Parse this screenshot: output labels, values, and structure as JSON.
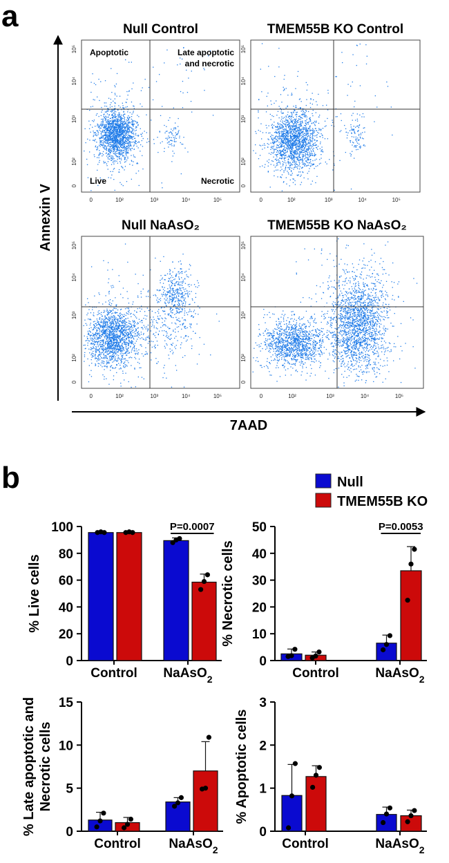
{
  "panel_a": {
    "label": "a",
    "y_axis_label": "Annexin V",
    "x_axis_label": "7AAD",
    "tick_labels": [
      "0",
      "10²",
      "10³",
      "10⁴",
      "10⁵"
    ],
    "quadrant_labels": {
      "top_left": "Apoptotic",
      "top_right_1": "Late apoptotic",
      "top_right_2": "and necrotic",
      "bottom_left": "Live",
      "bottom_right": "Necrotic"
    },
    "plots": [
      {
        "title": "Null Control",
        "point_color": "#1e7be8"
      },
      {
        "title": "TMEM55B KO Control",
        "point_color": "#1e7be8"
      },
      {
        "title": "Null NaAsO₂",
        "point_color": "#1e7be8"
      },
      {
        "title": "TMEM55B KO NaAsO₂",
        "point_color": "#1e7be8"
      }
    ]
  },
  "panel_b": {
    "label": "b",
    "legend": [
      {
        "name": "Null",
        "color": "#0a0ad0"
      },
      {
        "name": "TMEM55B KO",
        "color": "#cc0a0a"
      }
    ]
  },
  "chart_data": [
    {
      "type": "bar",
      "ylabel": "% Live cells",
      "categories": [
        "Control",
        "NaAsO₂"
      ],
      "ylim": [
        0,
        100
      ],
      "yticks": [
        0,
        20,
        40,
        60,
        80,
        100
      ],
      "series": [
        {
          "name": "Null",
          "values": [
            95.5,
            89.5
          ],
          "errors": [
            1.0,
            2.0
          ],
          "points": [
            [
              95.5,
              96,
              95.5
            ],
            [
              88,
              90,
              91
            ]
          ]
        },
        {
          "name": "TMEM55B KO",
          "values": [
            95.5,
            58.5
          ],
          "errors": [
            1.0,
            6.0
          ],
          "points": [
            [
              95.5,
              96,
              95.5
            ],
            [
              53,
              59,
              64
            ]
          ]
        }
      ],
      "annotation": {
        "text": "P=0.0007",
        "category_index": 1
      }
    },
    {
      "type": "bar",
      "ylabel": "% Necrotic cells",
      "categories": [
        "Control",
        "NaAsO₂"
      ],
      "ylim": [
        0,
        50
      ],
      "yticks": [
        0,
        10,
        20,
        30,
        40,
        50
      ],
      "series": [
        {
          "name": "Null",
          "values": [
            2.5,
            6.5
          ],
          "errors": [
            1.8,
            3.0
          ],
          "points": [
            [
              1.5,
              1.8,
              4.2
            ],
            [
              4.0,
              6.0,
              9.3
            ]
          ]
        },
        {
          "name": "TMEM55B KO",
          "values": [
            2.0,
            33.5
          ],
          "errors": [
            1.2,
            9.0
          ],
          "points": [
            [
              1.0,
              1.7,
              3.2
            ],
            [
              22.5,
              36.0,
              41.5
            ]
          ]
        }
      ],
      "annotation": {
        "text": "P=0.0053",
        "category_index": 1
      }
    },
    {
      "type": "bar",
      "ylabel": "% Late apoptotic and Necrotic cells",
      "ylabel_lines": [
        "% Late apoptotic and",
        "Necrotic cells"
      ],
      "categories": [
        "Control",
        "NaAsO₂"
      ],
      "ylim": [
        0,
        15
      ],
      "yticks": [
        0,
        5,
        10,
        15
      ],
      "series": [
        {
          "name": "Null",
          "values": [
            1.3,
            3.4
          ],
          "errors": [
            0.9,
            0.5
          ],
          "points": [
            [
              0.5,
              1.2,
              2.1
            ],
            [
              2.9,
              3.3,
              3.9
            ]
          ]
        },
        {
          "name": "TMEM55B KO",
          "values": [
            1.0,
            7.0
          ],
          "errors": [
            0.6,
            3.4
          ],
          "points": [
            [
              0.4,
              0.8,
              1.4
            ],
            [
              4.9,
              5.0,
              10.9
            ]
          ]
        }
      ]
    },
    {
      "type": "bar",
      "ylabel": "% Apoptotic cells",
      "categories": [
        "Control",
        "NaAsO₂"
      ],
      "ylim": [
        0,
        3
      ],
      "yticks": [
        0,
        1,
        2,
        3
      ],
      "series": [
        {
          "name": "Null",
          "values": [
            0.83,
            0.39
          ],
          "errors": [
            0.72,
            0.17
          ],
          "points": [
            [
              0.08,
              0.82,
              1.57
            ],
            [
              0.2,
              0.4,
              0.54
            ]
          ]
        },
        {
          "name": "TMEM55B KO",
          "values": [
            1.27,
            0.36
          ],
          "errors": [
            0.25,
            0.13
          ],
          "points": [
            [
              1.02,
              1.3,
              1.48
            ],
            [
              0.22,
              0.36,
              0.48
            ]
          ]
        }
      ]
    }
  ]
}
